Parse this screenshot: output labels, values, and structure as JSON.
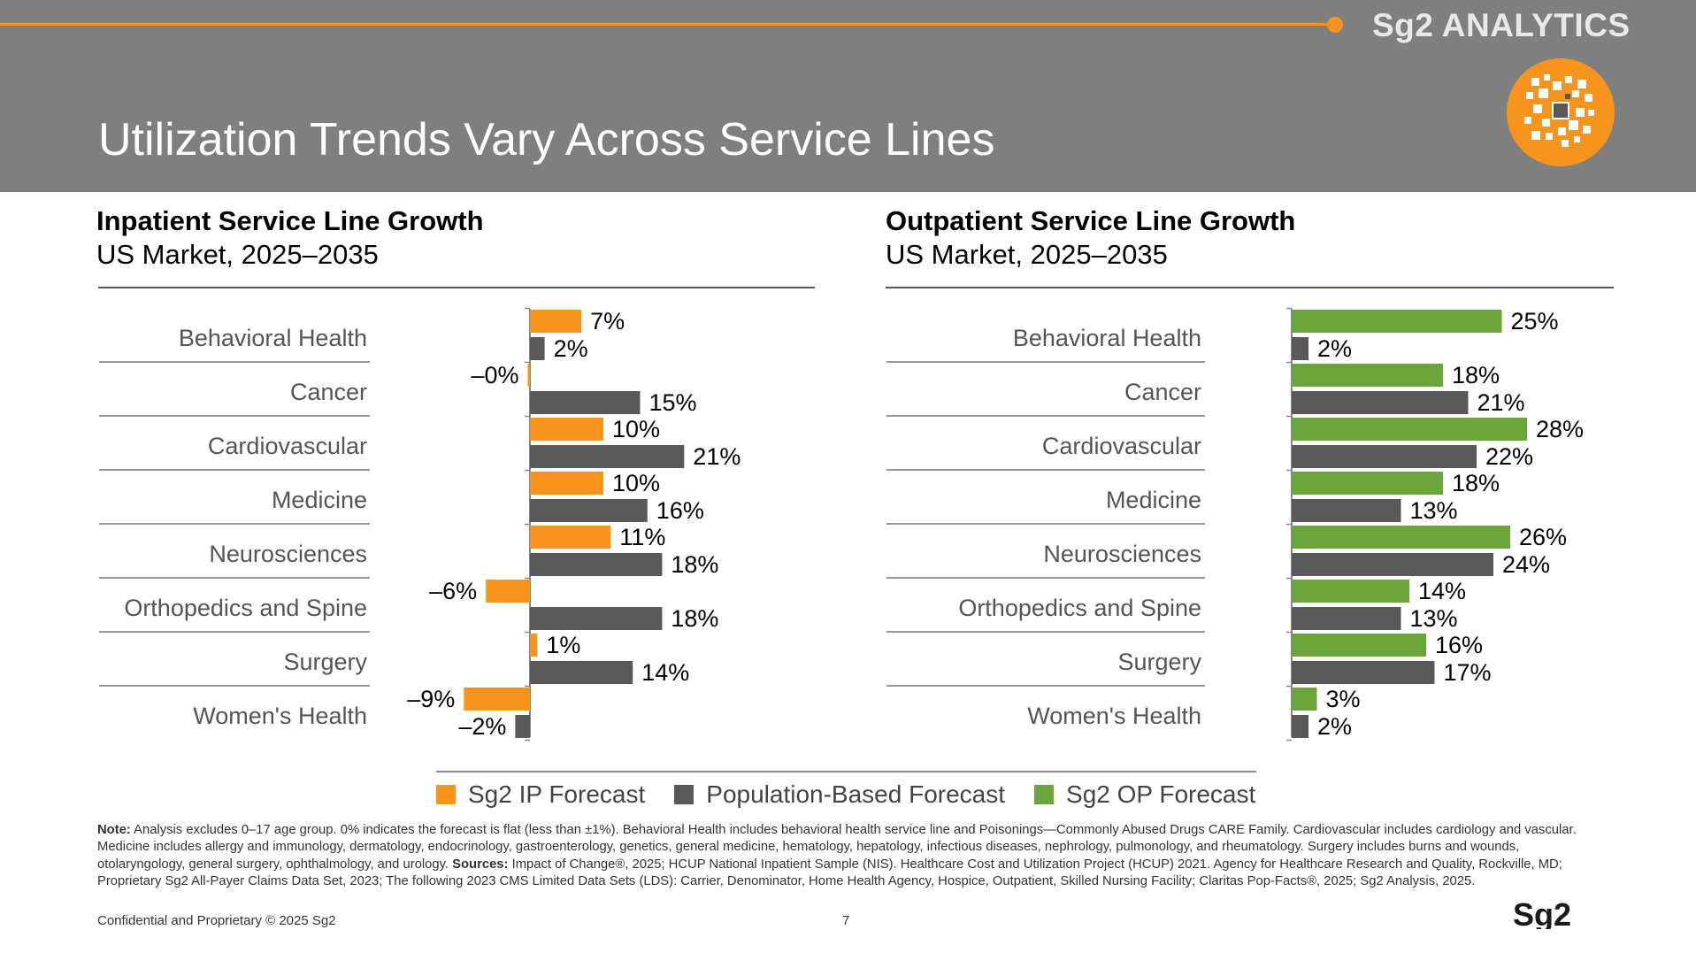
{
  "brand": "Sg2 ANALYTICS",
  "title": "Utilization Trends Vary Across Service Lines",
  "left_panel": {
    "title": "Inpatient Service Line Growth",
    "subtitle": "US Market, 2025–2035"
  },
  "right_panel": {
    "title": "Outpatient Service Line Growth",
    "subtitle": "US Market, 2025–2035"
  },
  "legend": {
    "ip": {
      "label": "Sg2 IP Forecast",
      "color": "#f7941d"
    },
    "pop": {
      "label": "Population-Based Forecast",
      "color": "#595959"
    },
    "op": {
      "label": "Sg2 OP Forecast",
      "color": "#6aa43a"
    }
  },
  "chart_data": [
    {
      "type": "bar",
      "orientation": "horizontal",
      "title": "Inpatient Service Line Growth",
      "subtitle": "US Market, 2025–2035",
      "categories": [
        "Behavioral Health",
        "Cancer",
        "Cardiovascular",
        "Medicine",
        "Neurosciences",
        "Orthopedics and Spine",
        "Surgery",
        "Women's Health"
      ],
      "series": [
        {
          "name": "Sg2 IP Forecast",
          "color": "#f7941d",
          "values": [
            7,
            -0.3,
            10,
            10,
            11,
            -6,
            1,
            -9
          ],
          "labels": [
            "7%",
            "–0%",
            "10%",
            "10%",
            "11%",
            "–6%",
            "1%",
            "–9%"
          ]
        },
        {
          "name": "Population-Based Forecast",
          "color": "#595959",
          "values": [
            2,
            15,
            21,
            16,
            18,
            18,
            14,
            -2
          ],
          "labels": [
            "2%",
            "15%",
            "21%",
            "16%",
            "18%",
            "18%",
            "14%",
            "–2%"
          ]
        }
      ],
      "xlim": [
        -9,
        22
      ]
    },
    {
      "type": "bar",
      "orientation": "horizontal",
      "title": "Outpatient Service Line Growth",
      "subtitle": "US Market, 2025–2035",
      "categories": [
        "Behavioral Health",
        "Cancer",
        "Cardiovascular",
        "Medicine",
        "Neurosciences",
        "Orthopedics and Spine",
        "Surgery",
        "Women's Health"
      ],
      "series": [
        {
          "name": "Sg2 OP Forecast",
          "color": "#6aa43a",
          "values": [
            25,
            18,
            28,
            18,
            26,
            14,
            16,
            3
          ],
          "labels": [
            "25%",
            "18%",
            "28%",
            "18%",
            "26%",
            "14%",
            "16%",
            "3%"
          ]
        },
        {
          "name": "Population-Based Forecast",
          "color": "#595959",
          "values": [
            2,
            21,
            22,
            13,
            24,
            13,
            17,
            2
          ],
          "labels": [
            "2%",
            "21%",
            "22%",
            "13%",
            "24%",
            "13%",
            "17%",
            "2%"
          ]
        }
      ],
      "xlim": [
        0,
        28
      ]
    }
  ],
  "note": {
    "label": "Note:",
    "text": "Analysis excludes 0–17 age group. 0% indicates the forecast is flat (less than ±1%). Behavioral Health includes behavioral health service line and Poisonings—Commonly Abused Drugs CARE Family. Cardiovascular includes cardiology and vascular. Medicine includes allergy and immunology, dermatology, endocrinology, gastroenterology, genetics, general medicine, hematology, hepatology, infectious diseases, nephrology, pulmonology, and rheumatology. Surgery includes burns and wounds, otolaryngology, general surgery, ophthalmology, and urology.",
    "sources_label": "Sources:",
    "sources_text": "Impact of Change®, 2025; HCUP National Inpatient Sample (NIS). Healthcare Cost and Utilization Project (HCUP) 2021. Agency for Healthcare Research and Quality, Rockville, MD; Proprietary Sg2 All-Payer Claims Data Set, 2023; The following 2023 CMS Limited Data Sets (LDS): Carrier, Denominator, Home Health Agency, Hospice, Outpatient, Skilled Nursing Facility; Claritas Pop-Facts®, 2025; Sg2 Analysis, 2025."
  },
  "footer": {
    "confidential": "Confidential and Proprietary © 2025 Sg2",
    "page": "7",
    "logo_text": "Sg2"
  }
}
